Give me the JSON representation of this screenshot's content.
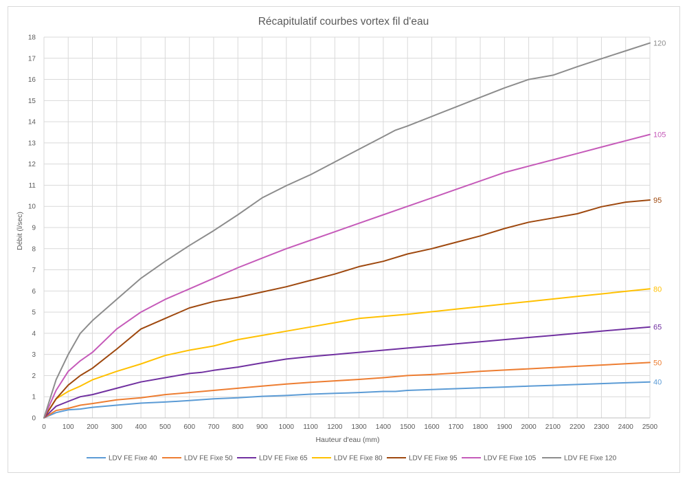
{
  "chart_data": {
    "type": "line",
    "title": "Récapitulatif courbes vortex fil d'eau",
    "xlabel": "Hauteur d'eau (mm)",
    "ylabel": "Débit (l/sec)",
    "xlim": [
      0,
      2500
    ],
    "ylim": [
      0,
      18
    ],
    "xticks": [
      0,
      100,
      200,
      300,
      400,
      500,
      600,
      700,
      800,
      900,
      1000,
      1100,
      1200,
      1300,
      1400,
      1500,
      1600,
      1700,
      1800,
      1900,
      2000,
      2100,
      2200,
      2300,
      2400,
      2500
    ],
    "yticks": [
      0,
      1,
      2,
      3,
      4,
      5,
      6,
      7,
      8,
      9,
      10,
      11,
      12,
      13,
      14,
      15,
      16,
      17,
      18
    ],
    "grid": true,
    "legend_position": "bottom",
    "series": [
      {
        "name": "LDV FE Fixe 40",
        "end_label": "40",
        "color": "#5b9bd5",
        "points": [
          [
            0,
            0
          ],
          [
            50,
            0.25
          ],
          [
            100,
            0.38
          ],
          [
            150,
            0.42
          ],
          [
            200,
            0.5
          ],
          [
            300,
            0.6
          ],
          [
            400,
            0.7
          ],
          [
            500,
            0.75
          ],
          [
            600,
            0.82
          ],
          [
            700,
            0.9
          ],
          [
            800,
            0.95
          ],
          [
            900,
            1.02
          ],
          [
            1000,
            1.06
          ],
          [
            1100,
            1.12
          ],
          [
            1200,
            1.16
          ],
          [
            1300,
            1.2
          ],
          [
            1400,
            1.25
          ],
          [
            1450,
            1.25
          ],
          [
            1500,
            1.3
          ],
          [
            1600,
            1.34
          ],
          [
            1700,
            1.38
          ],
          [
            1800,
            1.42
          ],
          [
            1900,
            1.46
          ],
          [
            2000,
            1.5
          ],
          [
            2100,
            1.54
          ],
          [
            2200,
            1.58
          ],
          [
            2300,
            1.62
          ],
          [
            2400,
            1.66
          ],
          [
            2500,
            1.7
          ]
        ]
      },
      {
        "name": "LDV FE Fixe 50",
        "end_label": "50",
        "color": "#ed7d31",
        "points": [
          [
            0,
            0
          ],
          [
            50,
            0.35
          ],
          [
            100,
            0.45
          ],
          [
            150,
            0.6
          ],
          [
            200,
            0.68
          ],
          [
            300,
            0.85
          ],
          [
            400,
            0.95
          ],
          [
            500,
            1.1
          ],
          [
            600,
            1.2
          ],
          [
            700,
            1.3
          ],
          [
            800,
            1.4
          ],
          [
            900,
            1.5
          ],
          [
            1000,
            1.6
          ],
          [
            1100,
            1.68
          ],
          [
            1200,
            1.75
          ],
          [
            1300,
            1.82
          ],
          [
            1400,
            1.9
          ],
          [
            1500,
            2.0
          ],
          [
            1600,
            2.05
          ],
          [
            1700,
            2.12
          ],
          [
            1800,
            2.2
          ],
          [
            1900,
            2.26
          ],
          [
            2000,
            2.32
          ],
          [
            2100,
            2.38
          ],
          [
            2200,
            2.44
          ],
          [
            2300,
            2.5
          ],
          [
            2400,
            2.56
          ],
          [
            2500,
            2.62
          ]
        ]
      },
      {
        "name": "LDV FE Fixe 65",
        "end_label": "65",
        "color": "#7030a0",
        "points": [
          [
            0,
            0
          ],
          [
            50,
            0.55
          ],
          [
            100,
            0.78
          ],
          [
            150,
            1.0
          ],
          [
            200,
            1.1
          ],
          [
            300,
            1.4
          ],
          [
            400,
            1.7
          ],
          [
            500,
            1.9
          ],
          [
            600,
            2.1
          ],
          [
            650,
            2.15
          ],
          [
            700,
            2.25
          ],
          [
            800,
            2.4
          ],
          [
            900,
            2.6
          ],
          [
            1000,
            2.78
          ],
          [
            1100,
            2.9
          ],
          [
            1200,
            3.0
          ],
          [
            1300,
            3.1
          ],
          [
            1400,
            3.2
          ],
          [
            1500,
            3.3
          ],
          [
            1600,
            3.4
          ],
          [
            1700,
            3.5
          ],
          [
            1800,
            3.6
          ],
          [
            1900,
            3.7
          ],
          [
            2000,
            3.8
          ],
          [
            2100,
            3.9
          ],
          [
            2200,
            4.0
          ],
          [
            2300,
            4.1
          ],
          [
            2400,
            4.2
          ],
          [
            2500,
            4.3
          ]
        ]
      },
      {
        "name": "LDV FE Fixe 80",
        "end_label": "80",
        "color": "#ffc000",
        "points": [
          [
            0,
            0
          ],
          [
            50,
            0.9
          ],
          [
            100,
            1.25
          ],
          [
            150,
            1.5
          ],
          [
            200,
            1.8
          ],
          [
            300,
            2.2
          ],
          [
            400,
            2.55
          ],
          [
            500,
            2.95
          ],
          [
            600,
            3.2
          ],
          [
            700,
            3.4
          ],
          [
            800,
            3.7
          ],
          [
            900,
            3.9
          ],
          [
            1000,
            4.1
          ],
          [
            1100,
            4.3
          ],
          [
            1200,
            4.5
          ],
          [
            1300,
            4.7
          ],
          [
            1400,
            4.8
          ],
          [
            1500,
            4.9
          ],
          [
            1600,
            5.02
          ],
          [
            1700,
            5.14
          ],
          [
            1800,
            5.26
          ],
          [
            1900,
            5.38
          ],
          [
            2000,
            5.5
          ],
          [
            2100,
            5.62
          ],
          [
            2200,
            5.74
          ],
          [
            2300,
            5.86
          ],
          [
            2400,
            5.98
          ],
          [
            2500,
            6.1
          ]
        ]
      },
      {
        "name": "LDV FE Fixe 95",
        "end_label": "95",
        "color": "#9e480e",
        "points": [
          [
            0,
            0
          ],
          [
            50,
            0.9
          ],
          [
            100,
            1.55
          ],
          [
            150,
            2.0
          ],
          [
            200,
            2.35
          ],
          [
            300,
            3.25
          ],
          [
            400,
            4.2
          ],
          [
            500,
            4.7
          ],
          [
            600,
            5.2
          ],
          [
            700,
            5.5
          ],
          [
            800,
            5.7
          ],
          [
            900,
            5.95
          ],
          [
            1000,
            6.2
          ],
          [
            1100,
            6.5
          ],
          [
            1200,
            6.8
          ],
          [
            1300,
            7.15
          ],
          [
            1400,
            7.4
          ],
          [
            1500,
            7.75
          ],
          [
            1600,
            8.0
          ],
          [
            1700,
            8.3
          ],
          [
            1800,
            8.6
          ],
          [
            1900,
            8.95
          ],
          [
            2000,
            9.25
          ],
          [
            2100,
            9.45
          ],
          [
            2200,
            9.65
          ],
          [
            2300,
            9.98
          ],
          [
            2400,
            10.2
          ],
          [
            2500,
            10.3
          ]
        ]
      },
      {
        "name": "LDV FE Fixe 105",
        "end_label": "105",
        "color": "#c55ab9",
        "points": [
          [
            0,
            0
          ],
          [
            50,
            1.3
          ],
          [
            100,
            2.2
          ],
          [
            150,
            2.7
          ],
          [
            200,
            3.1
          ],
          [
            300,
            4.2
          ],
          [
            400,
            5.0
          ],
          [
            500,
            5.6
          ],
          [
            600,
            6.1
          ],
          [
            700,
            6.6
          ],
          [
            800,
            7.1
          ],
          [
            900,
            7.55
          ],
          [
            1000,
            8.0
          ],
          [
            1100,
            8.4
          ],
          [
            1200,
            8.8
          ],
          [
            1300,
            9.2
          ],
          [
            1400,
            9.6
          ],
          [
            1500,
            10.0
          ],
          [
            1600,
            10.4
          ],
          [
            1700,
            10.8
          ],
          [
            1800,
            11.2
          ],
          [
            1900,
            11.6
          ],
          [
            2000,
            11.9
          ],
          [
            2100,
            12.2
          ],
          [
            2200,
            12.5
          ],
          [
            2300,
            12.8
          ],
          [
            2400,
            13.1
          ],
          [
            2500,
            13.4
          ]
        ]
      },
      {
        "name": "LDV FE Fixe 120",
        "end_label": "120",
        "color": "#8c8c8c",
        "points": [
          [
            0,
            0
          ],
          [
            50,
            1.8
          ],
          [
            100,
            3.0
          ],
          [
            150,
            4.0
          ],
          [
            200,
            4.6
          ],
          [
            300,
            5.6
          ],
          [
            400,
            6.6
          ],
          [
            500,
            7.4
          ],
          [
            600,
            8.15
          ],
          [
            700,
            8.85
          ],
          [
            800,
            9.6
          ],
          [
            900,
            10.4
          ],
          [
            1000,
            10.98
          ],
          [
            1100,
            11.5
          ],
          [
            1200,
            12.1
          ],
          [
            1300,
            12.7
          ],
          [
            1400,
            13.3
          ],
          [
            1450,
            13.6
          ],
          [
            1500,
            13.8
          ],
          [
            1600,
            14.25
          ],
          [
            1700,
            14.7
          ],
          [
            1800,
            15.15
          ],
          [
            1900,
            15.6
          ],
          [
            2000,
            16.0
          ],
          [
            2100,
            16.2
          ],
          [
            2200,
            16.6
          ],
          [
            2300,
            16.98
          ],
          [
            2400,
            17.35
          ],
          [
            2500,
            17.72
          ]
        ]
      }
    ]
  }
}
